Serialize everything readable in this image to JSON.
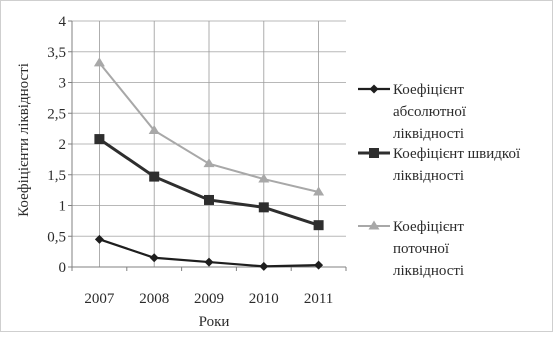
{
  "chart_data": {
    "type": "line",
    "title": "",
    "xlabel": "Роки",
    "ylabel": "Коефіцієнти ліквідності",
    "categories": [
      "2007",
      "2008",
      "2009",
      "2010",
      "2011"
    ],
    "y_ticks": [
      "0",
      "0,5",
      "1",
      "1,5",
      "2",
      "2,5",
      "3",
      "3,5",
      "4"
    ],
    "ylim": [
      0,
      4
    ],
    "grid": true,
    "legend_position": "right",
    "series": [
      {
        "name": "Коефіцієнт абсолютної ліквідності",
        "legend_lines": [
          "Коефіцієнт",
          "абсолютної",
          "ліквідності"
        ],
        "marker": "diamond",
        "color": "#1e1e1e",
        "values": [
          0.45,
          0.15,
          0.08,
          0.01,
          0.03
        ]
      },
      {
        "name": "Коефіцієнт швидкої ліквідності",
        "legend_lines": [
          "Коефіцієнт швидкої",
          "ліквідності"
        ],
        "marker": "square",
        "color": "#2e2e2e",
        "values": [
          2.08,
          1.47,
          1.09,
          0.97,
          0.68
        ]
      },
      {
        "name": "Коефіцієнт поточної ліквідності",
        "legend_lines": [
          "Коефіцієнт",
          "поточної",
          "ліквідності"
        ],
        "marker": "triangle",
        "color": "#a8a8a8",
        "values": [
          3.32,
          2.22,
          1.68,
          1.43,
          1.22
        ]
      }
    ]
  }
}
